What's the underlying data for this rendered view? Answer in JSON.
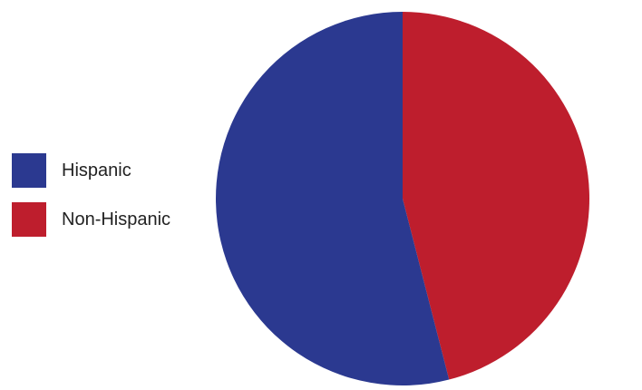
{
  "chart_data": {
    "type": "pie",
    "categories": [
      "Hispanic",
      "Non-Hispanic"
    ],
    "values": [
      54,
      46
    ],
    "colors": [
      "#2b3990",
      "#be1e2d"
    ],
    "legend_position": "left"
  }
}
